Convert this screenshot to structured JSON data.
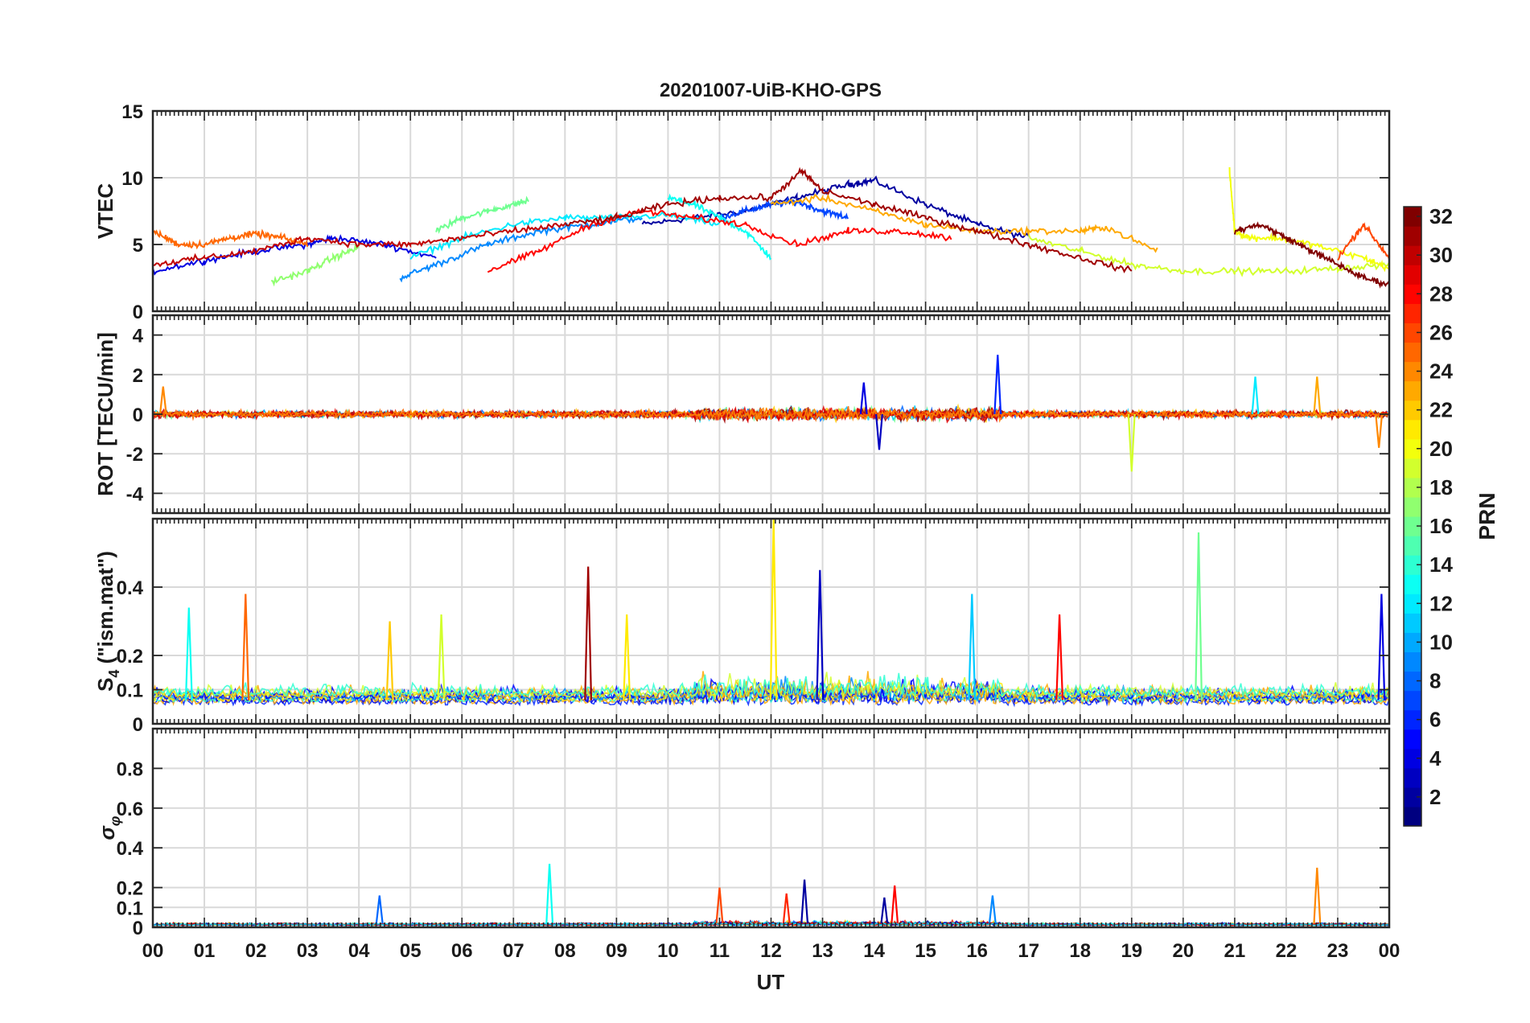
{
  "chart_data": {
    "type": "line",
    "title": "20201007-UiB-KHO-GPS",
    "xlabel": "UT",
    "x_ticks": [
      "00",
      "01",
      "02",
      "03",
      "04",
      "05",
      "06",
      "07",
      "08",
      "09",
      "10",
      "11",
      "12",
      "13",
      "14",
      "15",
      "16",
      "17",
      "18",
      "19",
      "20",
      "21",
      "22",
      "23",
      "00"
    ],
    "xlim_hours": [
      0,
      24
    ],
    "panels": [
      {
        "key": "vtec",
        "ylabel": "VTEC",
        "ylim": [
          0,
          15
        ],
        "y_ticks": [
          0,
          5,
          10,
          15
        ],
        "y_tick_labels": [
          "0",
          "5",
          "10",
          "15"
        ],
        "description": "many PRN tracks, ~2-6 TECU at night, rising to ~6-10 TECU around 11-14 UT",
        "series": [
          {
            "name": "PRN 2",
            "prn": 2,
            "x": [
              9.5,
              10.5,
              11.5,
              12.5,
              13.5,
              14.0,
              15.0,
              16.0,
              17.0
            ],
            "y": [
              6.5,
              7.0,
              7.5,
              8.5,
              9.5,
              9.8,
              8.0,
              6.5,
              5.5
            ]
          },
          {
            "name": "PRN 4",
            "prn": 4,
            "x": [
              0.0,
              1.0,
              2.0,
              3.0,
              3.5,
              4.5,
              5.5
            ],
            "y": [
              3.0,
              3.8,
              4.5,
              5.0,
              5.5,
              5.0,
              4.0
            ]
          },
          {
            "name": "PRN 7",
            "prn": 7,
            "x": [
              11.0,
              11.5,
              12.0,
              12.5,
              13.0,
              13.5
            ],
            "y": [
              7.0,
              7.5,
              8.0,
              8.2,
              7.5,
              7.0
            ]
          },
          {
            "name": "PRN 9",
            "prn": 9,
            "x": [
              4.8,
              5.5,
              6.5,
              7.5,
              8.5,
              9.5
            ],
            "y": [
              2.5,
              3.5,
              5.0,
              6.0,
              6.5,
              7.0
            ]
          },
          {
            "name": "PRN 12",
            "prn": 12,
            "x": [
              5.0,
              6.0,
              7.0,
              8.0,
              9.0,
              10.0,
              11.0
            ],
            "y": [
              4.0,
              5.5,
              6.5,
              7.0,
              7.0,
              7.2,
              6.5
            ]
          },
          {
            "name": "PRN 13",
            "prn": 13,
            "x": [
              10.0,
              10.5,
              11.0,
              11.5,
              12.0
            ],
            "y": [
              8.5,
              8.0,
              7.0,
              6.0,
              4.0
            ]
          },
          {
            "name": "PRN 16",
            "prn": 16,
            "x": [
              5.5,
              6.0,
              6.5,
              7.0,
              7.3
            ],
            "y": [
              6.0,
              7.0,
              7.5,
              8.0,
              8.3
            ]
          },
          {
            "name": "PRN 17",
            "prn": 17,
            "x": [
              2.3,
              3.0,
              3.5,
              4.0
            ],
            "y": [
              2.2,
              3.0,
              4.0,
              4.8
            ]
          },
          {
            "name": "PRN 19",
            "prn": 19,
            "x": [
              17.0,
              18.0,
              19.0,
              20.0,
              21.0,
              22.0,
              23.0,
              24.0
            ],
            "y": [
              5.5,
              4.5,
              3.5,
              3.0,
              3.0,
              3.0,
              3.2,
              3.5
            ]
          },
          {
            "name": "PRN 20",
            "prn": 20,
            "x": [
              20.9,
              21.0,
              21.3,
              21.8,
              22.5,
              23.5,
              24.0
            ],
            "y": [
              10.5,
              6.0,
              5.5,
              5.5,
              5.0,
              4.0,
              3.2
            ]
          },
          {
            "name": "PRN 23",
            "prn": 23,
            "x": [
              12.0,
              13.0,
              14.0,
              15.0,
              16.0,
              17.0,
              18.0,
              18.5,
              19.5
            ],
            "y": [
              8.0,
              8.5,
              7.5,
              6.5,
              6.0,
              6.0,
              6.0,
              6.3,
              4.5
            ]
          },
          {
            "name": "PRN 25",
            "prn": 25,
            "x": [
              0.0,
              0.5,
              1.0,
              1.5,
              2.0,
              2.5,
              3.0
            ],
            "y": [
              6.0,
              5.0,
              5.0,
              5.5,
              5.8,
              5.5,
              5.0
            ]
          },
          {
            "name": "PRN 26",
            "prn": 26,
            "x": [
              23.0,
              23.5,
              24.0
            ],
            "y": [
              4.0,
              6.5,
              4.0
            ]
          },
          {
            "name": "PRN 28",
            "prn": 28,
            "x": [
              6.5,
              7.5,
              8.5,
              9.5,
              10.5,
              11.5,
              12.5,
              13.5,
              14.5,
              15.5
            ],
            "y": [
              3.0,
              4.5,
              6.5,
              7.5,
              7.0,
              6.5,
              5.0,
              6.0,
              6.0,
              5.5
            ]
          },
          {
            "name": "PRN 30",
            "prn": 30,
            "x": [
              0.0,
              1.0,
              2.0,
              3.0,
              4.0,
              5.0,
              6.0,
              7.0,
              8.0
            ],
            "y": [
              3.5,
              4.0,
              4.5,
              5.5,
              5.0,
              5.0,
              5.5,
              6.0,
              6.5
            ]
          },
          {
            "name": "PRN 31",
            "prn": 31,
            "x": [
              8.0,
              9.0,
              10.0,
              11.0,
              12.0,
              12.6,
              13.0,
              14.0,
              15.0,
              16.0,
              17.0,
              18.0,
              19.0
            ],
            "y": [
              6.5,
              7.0,
              8.0,
              8.5,
              8.5,
              10.5,
              9.0,
              8.0,
              7.0,
              6.0,
              5.0,
              4.0,
              3.0
            ]
          },
          {
            "name": "PRN 32",
            "prn": 32,
            "x": [
              21.0,
              21.5,
              22.0,
              22.5,
              23.0,
              23.5,
              24.0
            ],
            "y": [
              6.0,
              6.5,
              5.5,
              4.5,
              3.5,
              2.5,
              2.0
            ]
          }
        ]
      },
      {
        "key": "rot",
        "ylabel": "ROT [TECU/min]",
        "ylim": [
          -5,
          5
        ],
        "y_ticks": [
          -4,
          -2,
          0,
          2,
          4
        ],
        "y_tick_labels": [
          "-4",
          "-2",
          "0",
          "2",
          "4"
        ],
        "description": "fluctuations around 0, mostly within +/-1 TECU/min; larger spikes near 13-15 UT",
        "spikes": [
          {
            "x": 16.4,
            "y": 3.0,
            "prn": 6
          },
          {
            "x": 19.0,
            "y": -2.9,
            "prn": 19
          },
          {
            "x": 13.8,
            "y": 1.6,
            "prn": 4
          },
          {
            "x": 14.1,
            "y": -1.8,
            "prn": 3
          },
          {
            "x": 21.4,
            "y": 1.9,
            "prn": 12
          },
          {
            "x": 23.8,
            "y": -1.7,
            "prn": 24
          },
          {
            "x": 0.2,
            "y": 1.4,
            "prn": 24
          },
          {
            "x": 22.6,
            "y": 1.9,
            "prn": 23
          }
        ]
      },
      {
        "key": "s4",
        "ylabel": "S4 (\"ism.mat\")",
        "ylim": [
          0,
          0.6
        ],
        "y_ticks": [
          0,
          0.1,
          0.2,
          0.4
        ],
        "y_tick_labels": [
          "0",
          "0.1",
          "0.2",
          "0.4"
        ],
        "description": "background ~0.05-0.1 with spikes up to ~0.4-0.6",
        "spikes": [
          {
            "x": 12.05,
            "y": 0.6,
            "prn": 21
          },
          {
            "x": 20.3,
            "y": 0.56,
            "prn": 16
          },
          {
            "x": 8.45,
            "y": 0.46,
            "prn": 31
          },
          {
            "x": 12.95,
            "y": 0.45,
            "prn": 3
          },
          {
            "x": 15.9,
            "y": 0.38,
            "prn": 11
          },
          {
            "x": 1.8,
            "y": 0.38,
            "prn": 25
          },
          {
            "x": 23.85,
            "y": 0.38,
            "prn": 4
          },
          {
            "x": 0.7,
            "y": 0.34,
            "prn": 13
          },
          {
            "x": 4.6,
            "y": 0.3,
            "prn": 22
          },
          {
            "x": 5.6,
            "y": 0.32,
            "prn": 19
          },
          {
            "x": 9.2,
            "y": 0.32,
            "prn": 21
          },
          {
            "x": 17.6,
            "y": 0.32,
            "prn": 28
          }
        ]
      },
      {
        "key": "sigma_phi",
        "ylabel": "σφ",
        "ylim": [
          0,
          1
        ],
        "y_ticks": [
          0,
          0.1,
          0.2,
          0.4,
          0.6,
          0.8
        ],
        "y_tick_labels": [
          "0",
          "0.1",
          "0.2",
          "0.4",
          "0.6",
          "0.8"
        ],
        "description": "mostly below 0.05 with isolated spikes",
        "spikes": [
          {
            "x": 7.7,
            "y": 0.32,
            "prn": 13
          },
          {
            "x": 22.6,
            "y": 0.3,
            "prn": 24
          },
          {
            "x": 12.65,
            "y": 0.24,
            "prn": 2
          },
          {
            "x": 14.4,
            "y": 0.21,
            "prn": 28
          },
          {
            "x": 11.0,
            "y": 0.2,
            "prn": 26
          },
          {
            "x": 12.3,
            "y": 0.17,
            "prn": 27
          },
          {
            "x": 4.4,
            "y": 0.16,
            "prn": 8
          },
          {
            "x": 14.2,
            "y": 0.15,
            "prn": 2
          },
          {
            "x": 16.3,
            "y": 0.16,
            "prn": 9
          }
        ]
      }
    ],
    "colorbar": {
      "label": "PRN",
      "min": 1,
      "max": 32,
      "ticks": [
        2,
        4,
        6,
        8,
        10,
        12,
        14,
        16,
        18,
        20,
        22,
        24,
        26,
        28,
        30,
        32
      ],
      "colormap": "jet"
    }
  }
}
